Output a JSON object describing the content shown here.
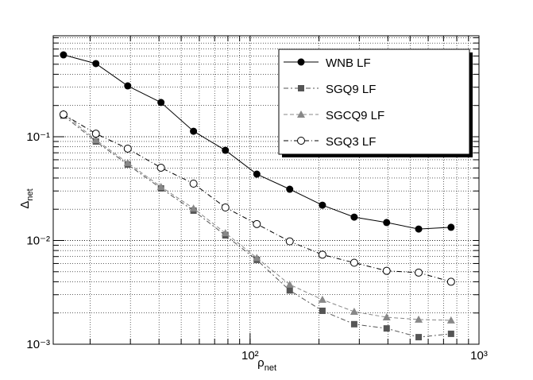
{
  "chart_data": {
    "type": "line",
    "x_label": {
      "symbol": "ρ",
      "subscript": "net"
    },
    "y_label": {
      "symbol": "Δ",
      "subscript": "net"
    },
    "x": [
      15.3,
      21.2,
      29.2,
      40.8,
      56.6,
      78,
      107,
      149,
      207,
      285,
      395,
      545,
      755
    ],
    "series": [
      {
        "name": "WNB LF",
        "color": "#000000",
        "marker": "filled-circle",
        "dash": "none",
        "values": [
          0.615,
          0.507,
          0.309,
          0.214,
          0.113,
          0.074,
          0.0436,
          0.0312,
          0.0219,
          0.0168,
          0.0149,
          0.0129,
          0.0134
        ]
      },
      {
        "name": "SGQ9 LF",
        "color": "#555555",
        "marker": "square",
        "dash": "6 3 2 3",
        "values": [
          0.16,
          0.09,
          0.054,
          0.0318,
          0.0194,
          0.0112,
          0.0065,
          0.0033,
          0.0021,
          0.00156,
          0.00142,
          0.00117,
          0.00126
        ]
      },
      {
        "name": "SGCQ9 LF",
        "color": "#888888",
        "marker": "triangle",
        "dash": "5 3",
        "values": [
          0.167,
          0.093,
          0.056,
          0.0329,
          0.0204,
          0.0118,
          0.0068,
          0.00376,
          0.00269,
          0.00206,
          0.00182,
          0.00173,
          0.0017
        ]
      },
      {
        "name": "SGQ3 LF",
        "color": "#000000",
        "marker": "open-circle",
        "dash": "6 3 1 3",
        "values": [
          0.164,
          0.107,
          0.0768,
          0.0503,
          0.0353,
          0.0208,
          0.0144,
          0.0098,
          0.0073,
          0.0061,
          0.0051,
          0.0049,
          0.004
        ]
      }
    ],
    "xlim": [
      13.8,
      1000
    ],
    "ylim": [
      0.001,
      0.94
    ],
    "xticks": [
      {
        "value": 100,
        "label": "10²"
      },
      {
        "value": 1000,
        "label": "10³"
      }
    ],
    "yticks": [
      {
        "value": 0.001,
        "label": "10⁻³"
      },
      {
        "value": 0.01,
        "label": "10⁻²"
      },
      {
        "value": 0.1,
        "label": "10⁻¹"
      }
    ],
    "log_x": true,
    "log_y": true,
    "grid": true,
    "legend": "top-right"
  }
}
